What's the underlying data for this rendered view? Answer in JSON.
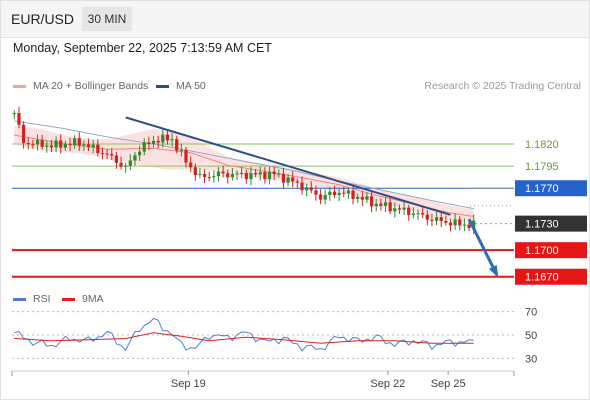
{
  "header": {
    "symbol": "EUR/USD",
    "timeframe": "30 MIN"
  },
  "datetime": "Monday, September 22, 2025 7:13:59 AM CET",
  "legend": [
    {
      "label": "MA 20 + Bollinger Bands",
      "color": "#f4a0a0"
    },
    {
      "label": "MA 50",
      "color": "#2c4d8a"
    }
  ],
  "credit": "Research © 2025 Trading Central",
  "rsi_legend": [
    {
      "label": "RSI",
      "color": "#4d7dd6"
    },
    {
      "label": "9MA",
      "color": "#e02020"
    }
  ],
  "colors": {
    "up": "#2e8b2e",
    "down": "#d42020",
    "resistance": "#8fc060",
    "pivot": "#2563c9",
    "support": "#e51616",
    "current": "#333333",
    "trendline": "#2c4d8a"
  },
  "chart_data": {
    "type": "candlestick",
    "title": "EUR/USD 30 MIN",
    "ylim": [
      1.1655,
      1.1855
    ],
    "levels": [
      {
        "value": 1.182,
        "label": "1.1820",
        "kind": "resistance"
      },
      {
        "value": 1.1795,
        "label": "1.1795",
        "kind": "resistance"
      },
      {
        "value": 1.177,
        "label": "1.1770",
        "kind": "pivot"
      },
      {
        "value": 1.173,
        "label": "1.1730",
        "kind": "current"
      },
      {
        "value": 1.17,
        "label": "1.1700",
        "kind": "support"
      },
      {
        "value": 1.167,
        "label": "1.1670",
        "kind": "support"
      }
    ],
    "x_ticks": [
      {
        "label": "Sep 19",
        "pos": 0.38
      },
      {
        "label": "Sep 22",
        "pos": 0.81
      },
      {
        "label": "Sep 25",
        "pos": 0.94
      }
    ],
    "candle_count": 100,
    "close_path": [
      [
        0,
        1.1855
      ],
      [
        2,
        1.1822
      ],
      [
        8,
        1.1818
      ],
      [
        14,
        1.1822
      ],
      [
        20,
        1.1808
      ],
      [
        24,
        1.1793
      ],
      [
        27,
        1.1815
      ],
      [
        31,
        1.1826
      ],
      [
        34,
        1.1825
      ],
      [
        37,
        1.18
      ],
      [
        40,
        1.1782
      ],
      [
        44,
        1.1786
      ],
      [
        50,
        1.1785
      ],
      [
        56,
        1.1786
      ],
      [
        61,
        1.1775
      ],
      [
        66,
        1.176
      ],
      [
        70,
        1.1766
      ],
      [
        74,
        1.176
      ],
      [
        78,
        1.1752
      ],
      [
        82,
        1.1747
      ],
      [
        86,
        1.1742
      ],
      [
        90,
        1.1735
      ],
      [
        95,
        1.173
      ],
      [
        99,
        1.1728
      ]
    ],
    "ma20_path": [
      [
        0,
        1.183
      ],
      [
        10,
        1.1821
      ],
      [
        20,
        1.1814
      ],
      [
        30,
        1.1815
      ],
      [
        38,
        1.181
      ],
      [
        46,
        1.1796
      ],
      [
        54,
        1.1789
      ],
      [
        62,
        1.1782
      ],
      [
        70,
        1.1774
      ],
      [
        78,
        1.1762
      ],
      [
        86,
        1.1752
      ],
      [
        94,
        1.1742
      ],
      [
        99,
        1.1738
      ]
    ],
    "ma50_path": [
      [
        0,
        1.1846
      ],
      [
        10,
        1.1838
      ],
      [
        20,
        1.1828
      ],
      [
        30,
        1.182
      ],
      [
        40,
        1.181
      ],
      [
        50,
        1.18
      ],
      [
        60,
        1.179
      ],
      [
        70,
        1.1778
      ],
      [
        80,
        1.1767
      ],
      [
        90,
        1.1756
      ],
      [
        99,
        1.1747
      ]
    ],
    "trendline": [
      [
        24,
        1.185
      ],
      [
        94,
        1.174
      ]
    ],
    "projection": [
      [
        98,
        1.1735
      ],
      [
        104,
        1.1672
      ]
    ],
    "rsi": {
      "levels": [
        70,
        50,
        30
      ],
      "ylim": [
        20,
        80
      ],
      "rsi_path": [
        [
          0,
          52
        ],
        [
          4,
          44
        ],
        [
          8,
          41
        ],
        [
          12,
          47
        ],
        [
          16,
          45
        ],
        [
          20,
          52
        ],
        [
          24,
          38
        ],
        [
          27,
          56
        ],
        [
          30,
          63
        ],
        [
          33,
          54
        ],
        [
          36,
          42
        ],
        [
          39,
          38
        ],
        [
          42,
          50
        ],
        [
          46,
          48
        ],
        [
          50,
          52
        ],
        [
          54,
          44
        ],
        [
          58,
          47
        ],
        [
          62,
          40
        ],
        [
          66,
          38
        ],
        [
          70,
          49
        ],
        [
          74,
          45
        ],
        [
          78,
          48
        ],
        [
          82,
          42
        ],
        [
          86,
          45
        ],
        [
          90,
          41
        ],
        [
          94,
          44
        ],
        [
          99,
          44
        ]
      ],
      "ma9_path": [
        [
          0,
          47
        ],
        [
          8,
          45
        ],
        [
          16,
          46
        ],
        [
          24,
          47
        ],
        [
          30,
          52
        ],
        [
          36,
          49
        ],
        [
          42,
          45
        ],
        [
          50,
          48
        ],
        [
          58,
          46
        ],
        [
          66,
          43
        ],
        [
          74,
          45
        ],
        [
          82,
          45
        ],
        [
          90,
          43
        ],
        [
          99,
          43
        ]
      ]
    }
  }
}
